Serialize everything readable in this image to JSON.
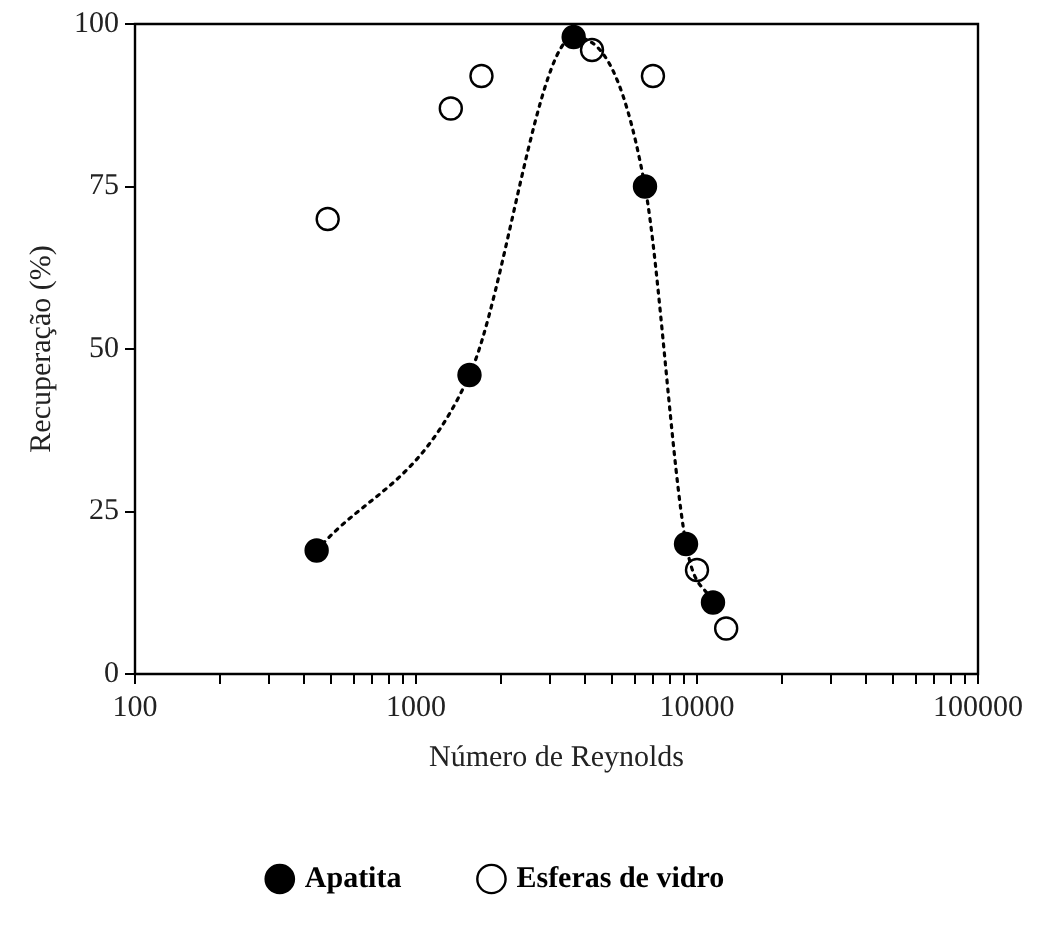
{
  "chart_data": {
    "type": "scatter",
    "xlabel": "Número de Reynolds",
    "ylabel": "Recuperação (%)",
    "log": "x",
    "xlim": [
      100,
      100000
    ],
    "xticks": [
      100,
      {
        "value": 200,
        "label": null
      },
      {
        "value": 300,
        "label": null
      },
      {
        "value": 400,
        "label": null
      },
      {
        "value": 500,
        "label": null
      },
      {
        "value": 600,
        "label": null
      },
      {
        "value": 700,
        "label": null
      },
      {
        "value": 800,
        "label": null
      },
      {
        "value": 900,
        "label": null
      },
      1000,
      {
        "value": 2000,
        "label": null
      },
      {
        "value": 3000,
        "label": null
      },
      {
        "value": 4000,
        "label": null
      },
      {
        "value": 5000,
        "label": null
      },
      {
        "value": 6000,
        "label": null
      },
      {
        "value": 7000,
        "label": null
      },
      {
        "value": 8000,
        "label": null
      },
      {
        "value": 9000,
        "label": null
      },
      10000,
      {
        "value": 20000,
        "label": null
      },
      {
        "value": 30000,
        "label": null
      },
      {
        "value": 40000,
        "label": null
      },
      {
        "value": 50000,
        "label": null
      },
      {
        "value": 60000,
        "label": null
      },
      {
        "value": 70000,
        "label": null
      },
      {
        "value": 80000,
        "label": null
      },
      {
        "value": 90000,
        "label": null
      },
      100000
    ],
    "ylim": [
      0,
      100
    ],
    "yticks": [
      0,
      25,
      50,
      75,
      100
    ],
    "grid": false,
    "legend": "bottom",
    "marker": "circle",
    "series": [
      {
        "name": "Apatita",
        "type": "line",
        "line_style": "dotted",
        "color": "#000000",
        "x": [
          443,
          1550,
          3640,
          6530,
          9140,
          11400
        ],
        "values": [
          19,
          46,
          98,
          75,
          20,
          11
        ]
      },
      {
        "name": "Esferas de vidro",
        "type": "scatter",
        "color": "#000000",
        "x": [
          485,
          1330,
          1710,
          4230,
          6970,
          10000,
          12700
        ],
        "values": [
          70,
          87,
          92,
          96,
          92,
          16,
          7
        ]
      }
    ]
  }
}
